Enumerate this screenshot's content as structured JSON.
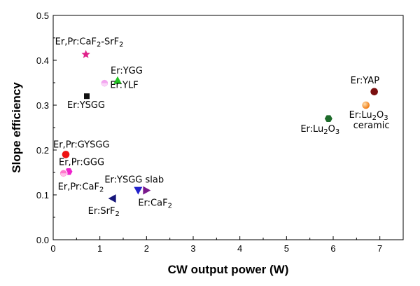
{
  "chart_data": {
    "type": "scatter",
    "title": "",
    "xlabel": "CW output power (W)",
    "ylabel": "Slope efficiency",
    "xlim": [
      0,
      7.5
    ],
    "ylim": [
      0,
      0.5
    ],
    "xticks": [
      "0",
      "1",
      "2",
      "3",
      "4",
      "5",
      "6",
      "7"
    ],
    "yticks": [
      "0.0",
      "0.1",
      "0.2",
      "0.3",
      "0.4",
      "0.5"
    ],
    "grid": false,
    "legend": "none",
    "points": [
      {
        "label": "Er,Pr:CaF₂-SrF₂",
        "x": 0.7,
        "y": 0.413,
        "marker": "star",
        "color": "#e0218a"
      },
      {
        "label": "Er:YGG",
        "x": 1.38,
        "y": 0.355,
        "marker": "triangle-up",
        "color": "#22c422"
      },
      {
        "label": "Er:YLF",
        "x": 1.1,
        "y": 0.349,
        "marker": "circle-half",
        "color": "#f3a6f0"
      },
      {
        "label": "Er:YSGG",
        "x": 0.72,
        "y": 0.32,
        "marker": "square",
        "color": "#111111"
      },
      {
        "label": "Er,Pr:GYSGG",
        "x": 0.27,
        "y": 0.19,
        "marker": "circle",
        "color": "#ee1111"
      },
      {
        "label": "Er,Pr:GGG",
        "x": 0.33,
        "y": 0.152,
        "marker": "hexagon",
        "color": "#ee22cc"
      },
      {
        "label": "Er,Pr:CaF₂",
        "x": 0.22,
        "y": 0.148,
        "marker": "circle-half",
        "color": "#ff77cc"
      },
      {
        "label": "Er:YSGG slab",
        "x": 1.82,
        "y": 0.11,
        "marker": "triangle-down",
        "color": "#2222cc"
      },
      {
        "label": "Er:CaF₂",
        "x": 2.0,
        "y": 0.11,
        "marker": "triangle-right",
        "color": "#7a1a8c"
      },
      {
        "label": "Er:SrF₂",
        "x": 1.27,
        "y": 0.092,
        "marker": "triangle-left",
        "color": "#15157a"
      },
      {
        "label": "Er:YAP",
        "x": 6.88,
        "y": 0.33,
        "marker": "circle",
        "color": "#7a0f0f"
      },
      {
        "label": "Er:Lu₂O₃ ceramic",
        "x": 6.7,
        "y": 0.3,
        "marker": "circle-glossy",
        "color": "#f07a10"
      },
      {
        "label": "Er:Lu₂O₃",
        "x": 5.9,
        "y": 0.27,
        "marker": "hexagon",
        "color": "#1d6b2a"
      }
    ]
  }
}
